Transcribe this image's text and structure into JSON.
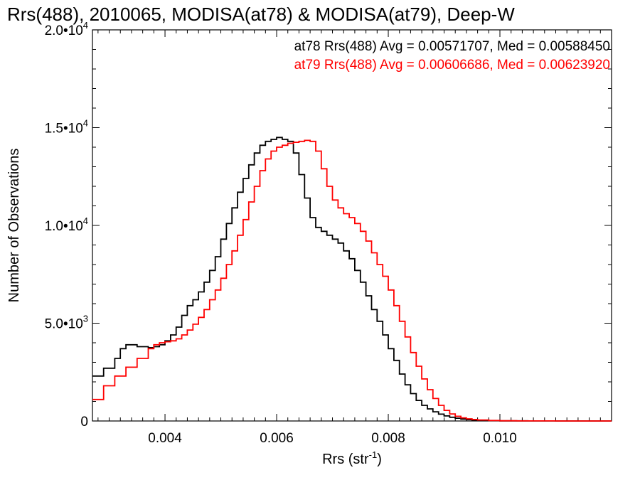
{
  "chart_data": {
    "type": "line",
    "title": "Rrs(488), 2010065, MODISA(at78) & MODISA(at79), Deep-W",
    "xlabel": "Rrs (str",
    "xlabel_sup": "-1",
    "xlabel_close": ")",
    "ylabel": "Number of Observations",
    "xlim": [
      0.0027,
      0.012
    ],
    "ylim": [
      0,
      20000
    ],
    "x_ticks": [
      {
        "value": 0.004,
        "label": "0.004"
      },
      {
        "value": 0.006,
        "label": "0.006"
      },
      {
        "value": 0.008,
        "label": "0.008"
      },
      {
        "value": 0.01,
        "label": "0.010"
      }
    ],
    "y_ticks": [
      {
        "value": 0,
        "mant": "0",
        "exp": ""
      },
      {
        "value": 5000,
        "mant": "5.0•10",
        "exp": "3"
      },
      {
        "value": 10000,
        "mant": "1.0•10",
        "exp": "4"
      },
      {
        "value": 15000,
        "mant": "1.5•10",
        "exp": "4"
      },
      {
        "value": 20000,
        "mant": "2.0•10",
        "exp": "4"
      }
    ],
    "legend_placement": "top-right",
    "grid": false,
    "series": [
      {
        "name": "at78",
        "legend_text": "at78 Rrs(488) Avg = 0.00571707, Med = 0.00588450",
        "color": "#000000",
        "x": [
          0.0027,
          0.0029,
          0.0031,
          0.0032,
          0.0033,
          0.0035,
          0.0037,
          0.0038,
          0.0039,
          0.004,
          0.0041,
          0.0042,
          0.0043,
          0.0044,
          0.0045,
          0.0046,
          0.0047,
          0.0048,
          0.0049,
          0.005,
          0.0051,
          0.0052,
          0.0053,
          0.0054,
          0.0055,
          0.0056,
          0.0057,
          0.0058,
          0.0059,
          0.006,
          0.0061,
          0.0062,
          0.0063,
          0.0064,
          0.0065,
          0.0066,
          0.0067,
          0.0068,
          0.0069,
          0.007,
          0.0071,
          0.0072,
          0.0073,
          0.0074,
          0.0075,
          0.0076,
          0.0077,
          0.0078,
          0.0079,
          0.008,
          0.0081,
          0.0082,
          0.0083,
          0.0084,
          0.0085,
          0.0086,
          0.0087,
          0.0088,
          0.0089,
          0.009,
          0.0091,
          0.0092,
          0.0093,
          0.0094,
          0.0095,
          0.0096,
          0.0098,
          0.01,
          0.0105,
          0.011,
          0.0115,
          0.012
        ],
        "y": [
          2300,
          2700,
          3200,
          3700,
          3900,
          3800,
          3750,
          3800,
          3900,
          4100,
          4400,
          4800,
          5400,
          5900,
          6200,
          6600,
          7100,
          7700,
          8400,
          9300,
          10100,
          10900,
          11700,
          12400,
          13100,
          13700,
          14100,
          14300,
          14400,
          14500,
          14400,
          14300,
          13700,
          12600,
          11400,
          10400,
          9900,
          9700,
          9500,
          9300,
          9100,
          8700,
          8300,
          7700,
          7100,
          6400,
          5700,
          5100,
          4400,
          3700,
          3100,
          2400,
          1850,
          1400,
          1050,
          800,
          620,
          470,
          350,
          260,
          190,
          140,
          100,
          70,
          50,
          30,
          15,
          8,
          2,
          0,
          0,
          0
        ]
      },
      {
        "name": "at79",
        "legend_text": "at79 Rrs(488) Avg = 0.00606686, Med = 0.00623920",
        "color": "#ff0000",
        "x": [
          0.0027,
          0.0029,
          0.0031,
          0.0033,
          0.0035,
          0.0037,
          0.0038,
          0.0039,
          0.004,
          0.0041,
          0.0042,
          0.0043,
          0.0044,
          0.0045,
          0.0046,
          0.0047,
          0.0048,
          0.0049,
          0.005,
          0.0051,
          0.0052,
          0.0053,
          0.0054,
          0.0055,
          0.0056,
          0.0057,
          0.0058,
          0.0059,
          0.006,
          0.0061,
          0.0062,
          0.0063,
          0.0064,
          0.0065,
          0.0066,
          0.0067,
          0.0068,
          0.0069,
          0.007,
          0.0071,
          0.0072,
          0.0073,
          0.0074,
          0.0075,
          0.0076,
          0.0077,
          0.0078,
          0.0079,
          0.008,
          0.0081,
          0.0082,
          0.0083,
          0.0084,
          0.0085,
          0.0086,
          0.0087,
          0.0088,
          0.0089,
          0.009,
          0.0091,
          0.0092,
          0.0093,
          0.0094,
          0.0095,
          0.0096,
          0.0098,
          0.01,
          0.0103,
          0.0106,
          0.011,
          0.0115,
          0.012
        ],
        "y": [
          1100,
          1800,
          2300,
          2750,
          3200,
          3700,
          3900,
          4000,
          4050,
          4100,
          4200,
          4400,
          4650,
          4950,
          5300,
          5700,
          6200,
          6700,
          7300,
          8000,
          8700,
          9500,
          10300,
          11200,
          12000,
          12800,
          13400,
          13800,
          14000,
          14100,
          14200,
          14250,
          14300,
          14350,
          14300,
          13800,
          12900,
          12000,
          11300,
          10900,
          10600,
          10400,
          10100,
          9700,
          9200,
          8600,
          8000,
          7400,
          6700,
          5900,
          5100,
          4300,
          3500,
          2800,
          2150,
          1600,
          1150,
          800,
          540,
          360,
          240,
          160,
          110,
          75,
          50,
          25,
          12,
          5,
          2,
          0,
          0,
          0
        ]
      }
    ]
  }
}
